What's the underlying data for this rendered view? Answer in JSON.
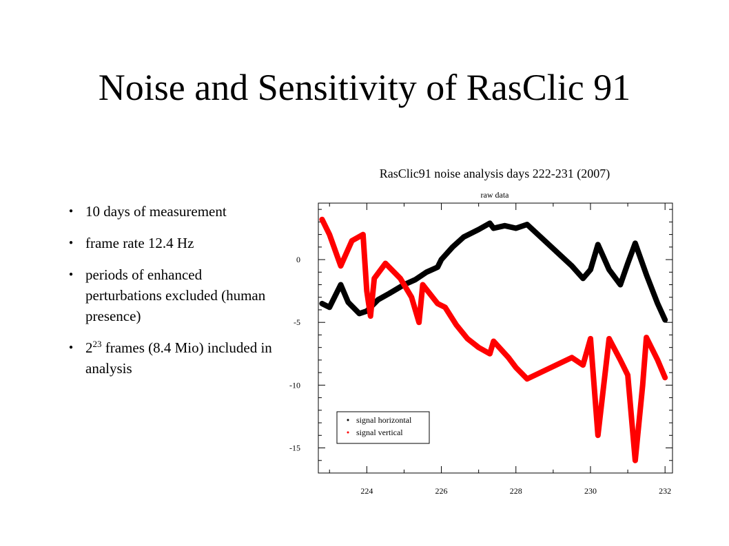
{
  "slide": {
    "title": "Noise and Sensitivity of RasClic 91",
    "bullets": [
      {
        "text": "10 days of measurement"
      },
      {
        "text": "frame rate 12.4 Hz"
      },
      {
        "text": "periods of enhanced perturbations excluded (human presence)"
      },
      {
        "base": "2",
        "sup": "23",
        "text": " frames (8.4 Mio) included in analysis"
      }
    ]
  },
  "chart_data": {
    "type": "line",
    "title": "RasClic91 noise analysis days 222-231 (2007)",
    "subtitle": "raw data",
    "xlabel": "",
    "ylabel": "",
    "xlim": [
      222.7,
      232.2
    ],
    "ylim": [
      -17,
      4.5
    ],
    "x_ticks": [
      224,
      226,
      228,
      230,
      232
    ],
    "y_ticks": [
      0,
      -5,
      -10,
      -15
    ],
    "grid": false,
    "legend_position": "bottom-left",
    "series": [
      {
        "name": "signal horizontal",
        "color": "#000000",
        "points": [
          [
            222.8,
            -3.5
          ],
          [
            223.0,
            -3.8
          ],
          [
            223.3,
            -2.0
          ],
          [
            223.5,
            -3.4
          ],
          [
            223.8,
            -4.3
          ],
          [
            224.0,
            -4.1
          ],
          [
            224.3,
            -3.2
          ],
          [
            224.6,
            -2.7
          ],
          [
            225.0,
            -2.0
          ],
          [
            225.3,
            -1.6
          ],
          [
            225.6,
            -1.0
          ],
          [
            225.9,
            -0.6
          ],
          [
            226.0,
            0.0
          ],
          [
            226.3,
            1.0
          ],
          [
            226.6,
            1.8
          ],
          [
            227.0,
            2.4
          ],
          [
            227.3,
            2.9
          ],
          [
            227.4,
            2.5
          ],
          [
            227.7,
            2.7
          ],
          [
            228.0,
            2.5
          ],
          [
            228.3,
            2.8
          ],
          [
            229.5,
            -0.5
          ],
          [
            229.8,
            -1.5
          ],
          [
            230.0,
            -0.8
          ],
          [
            230.2,
            1.2
          ],
          [
            230.5,
            -0.8
          ],
          [
            230.8,
            -2.0
          ],
          [
            231.0,
            -0.3
          ],
          [
            231.2,
            1.3
          ],
          [
            231.5,
            -1.2
          ],
          [
            231.8,
            -3.5
          ],
          [
            232.0,
            -4.8
          ]
        ]
      },
      {
        "name": "signal vertical",
        "color": "#ff0000",
        "points": [
          [
            222.8,
            3.2
          ],
          [
            223.0,
            2.0
          ],
          [
            223.3,
            -0.5
          ],
          [
            223.6,
            1.5
          ],
          [
            223.9,
            2.0
          ],
          [
            224.0,
            -2.5
          ],
          [
            224.1,
            -4.5
          ],
          [
            224.2,
            -1.5
          ],
          [
            224.5,
            -0.3
          ],
          [
            224.9,
            -1.5
          ],
          [
            225.2,
            -3.0
          ],
          [
            225.4,
            -5.0
          ],
          [
            225.5,
            -2.0
          ],
          [
            225.9,
            -3.5
          ],
          [
            226.1,
            -3.8
          ],
          [
            226.4,
            -5.2
          ],
          [
            226.7,
            -6.3
          ],
          [
            227.0,
            -7.0
          ],
          [
            227.3,
            -7.5
          ],
          [
            227.4,
            -6.5
          ],
          [
            227.8,
            -7.8
          ],
          [
            228.0,
            -8.6
          ],
          [
            228.3,
            -9.5
          ],
          [
            229.5,
            -7.8
          ],
          [
            229.8,
            -8.4
          ],
          [
            230.0,
            -6.3
          ],
          [
            230.2,
            -14.0
          ],
          [
            230.5,
            -6.3
          ],
          [
            230.8,
            -8.0
          ],
          [
            231.0,
            -9.2
          ],
          [
            231.2,
            -16.0
          ],
          [
            231.4,
            -10.0
          ],
          [
            231.5,
            -6.2
          ],
          [
            231.8,
            -8.0
          ],
          [
            232.0,
            -9.4
          ]
        ]
      }
    ]
  }
}
